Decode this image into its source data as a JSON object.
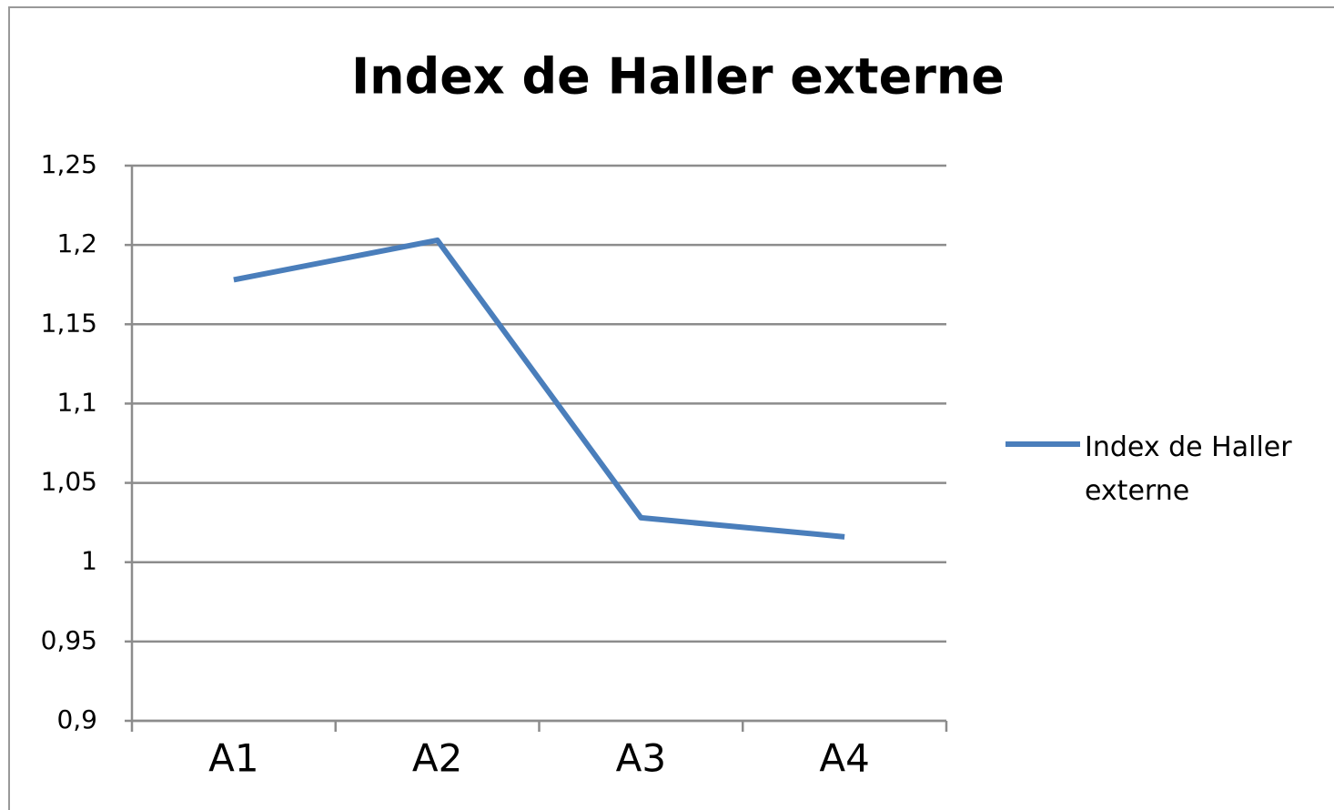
{
  "chart_data": {
    "type": "line",
    "title": "Index de Haller externe",
    "categories": [
      "A1",
      "A2",
      "A3",
      "A4"
    ],
    "series": [
      {
        "name": "Index de Haller externe",
        "color": "#4a7ebb",
        "values": [
          1.178,
          1.203,
          1.028,
          1.016
        ]
      }
    ],
    "ylim": [
      0.9,
      1.25
    ],
    "yticks": [
      {
        "value": 0.9,
        "label": "0,9"
      },
      {
        "value": 0.95,
        "label": "0,95"
      },
      1,
      {
        "value": 1.05,
        "label": "1,05"
      },
      {
        "value": 1.1,
        "label": "1,1"
      },
      {
        "value": 1.15,
        "label": "1,15"
      },
      {
        "value": 1.2,
        "label": "1,2"
      },
      {
        "value": 1.25,
        "label": "1,25"
      }
    ],
    "grid": true,
    "legend": "right"
  }
}
